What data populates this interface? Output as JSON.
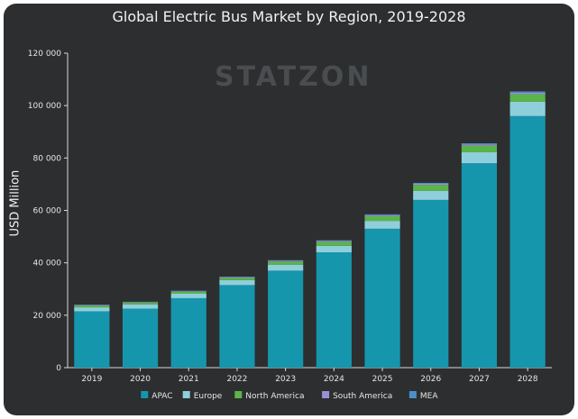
{
  "chart_data": {
    "type": "bar",
    "stacked": true,
    "title": "Global Electric Bus Market by Region, 2019-2028",
    "watermark": "STATZON",
    "ylabel": "USD Million",
    "xlabel": "",
    "ylim": [
      0,
      120000
    ],
    "yticks": [
      "0",
      "20 000",
      "40 000",
      "60 000",
      "80 000",
      "100 000",
      "120 000"
    ],
    "categories": [
      "2019",
      "2020",
      "2021",
      "2022",
      "2023",
      "2024",
      "2025",
      "2026",
      "2027",
      "2028"
    ],
    "series": [
      {
        "name": "APAC",
        "color": "#1596ad",
        "values": [
          21500,
          22500,
          26500,
          31500,
          37000,
          44000,
          53000,
          64000,
          78000,
          96000
        ]
      },
      {
        "name": "Europe",
        "color": "#8fcfdc",
        "values": [
          1500,
          1600,
          1700,
          1900,
          2300,
          2500,
          3000,
          3500,
          4200,
          5500
        ]
      },
      {
        "name": "North America",
        "color": "#5ab548",
        "values": [
          700,
          750,
          800,
          900,
          1200,
          1500,
          1800,
          2200,
          2500,
          2800
        ]
      },
      {
        "name": "South America",
        "color": "#9b8fd3",
        "values": [
          200,
          200,
          200,
          250,
          300,
          350,
          400,
          450,
          500,
          600
        ]
      },
      {
        "name": "MEA",
        "color": "#4b8fc9",
        "values": [
          100,
          100,
          150,
          150,
          200,
          250,
          300,
          350,
          400,
          500
        ]
      }
    ],
    "legend_position": "bottom",
    "grid": false
  }
}
